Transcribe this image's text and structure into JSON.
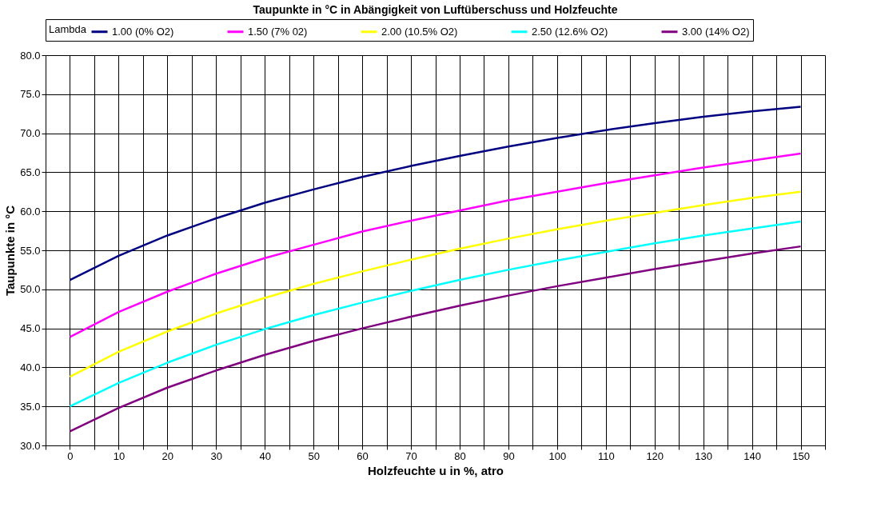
{
  "chart_data": {
    "type": "line",
    "title": "Taupunkte in °C in Abängigkeit von Luftüberschuss und Holzfeuchte",
    "xlabel": "Holzfeuchte u in %, atro",
    "ylabel": "Taupunkte in °C",
    "legend_title": "Lambda",
    "legend": "top",
    "grid": true,
    "marker": "none",
    "line_style": "solid",
    "x": [
      0,
      10,
      20,
      30,
      40,
      50,
      60,
      70,
      80,
      90,
      100,
      110,
      120,
      130,
      140,
      150
    ],
    "xlim": [
      -5,
      155
    ],
    "xticks": [
      {
        "value": -5,
        "label": null
      },
      0,
      {
        "value": 5,
        "label": null
      },
      10,
      {
        "value": 15,
        "label": null
      },
      20,
      {
        "value": 25,
        "label": null
      },
      30,
      {
        "value": 35,
        "label": null
      },
      40,
      {
        "value": 45,
        "label": null
      },
      50,
      {
        "value": 55,
        "label": null
      },
      60,
      {
        "value": 65,
        "label": null
      },
      70,
      {
        "value": 75,
        "label": null
      },
      80,
      {
        "value": 85,
        "label": null
      },
      90,
      {
        "value": 95,
        "label": null
      },
      100,
      {
        "value": 105,
        "label": null
      },
      110,
      {
        "value": 115,
        "label": null
      },
      120,
      {
        "value": 125,
        "label": null
      },
      130,
      {
        "value": 135,
        "label": null
      },
      140,
      {
        "value": 145,
        "label": null
      },
      150,
      {
        "value": 155,
        "label": null
      }
    ],
    "ylim": [
      30,
      80
    ],
    "yticks": [
      {
        "value": 30,
        "label": "30.0"
      },
      {
        "value": 35,
        "label": "35.0"
      },
      {
        "value": 40,
        "label": "40.0"
      },
      {
        "value": 45,
        "label": "45.0"
      },
      {
        "value": 50,
        "label": "50.0"
      },
      {
        "value": 55,
        "label": "55.0"
      },
      {
        "value": 60,
        "label": "60.0"
      },
      {
        "value": 65,
        "label": "65.0"
      },
      {
        "value": 70,
        "label": "70.0"
      },
      {
        "value": 75,
        "label": "75.0"
      },
      {
        "value": 80,
        "label": "80.0"
      }
    ],
    "series": [
      {
        "name": "1.00 (0% O2)",
        "color": "#000080",
        "values": [
          51.2,
          54.3,
          56.9,
          59.1,
          61.1,
          62.8,
          64.4,
          65.8,
          67.1,
          68.3,
          69.4,
          70.4,
          71.3,
          72.1,
          72.8,
          73.4
        ]
      },
      {
        "name": "1.50 (7% 02)",
        "color": "#ff00ff",
        "values": [
          43.9,
          47.1,
          49.7,
          52.0,
          54.0,
          55.7,
          57.4,
          58.8,
          60.1,
          61.4,
          62.5,
          63.6,
          64.6,
          65.6,
          66.5,
          67.4
        ]
      },
      {
        "name": "2.00 (10.5% O2)",
        "color": "#ffff00",
        "values": [
          38.8,
          42.0,
          44.6,
          46.9,
          48.9,
          50.7,
          52.3,
          53.8,
          55.2,
          56.5,
          57.7,
          58.8,
          59.8,
          60.8,
          61.7,
          62.5
        ]
      },
      {
        "name": "2.50 (12.6% O2)",
        "color": "#00ffff",
        "values": [
          35.0,
          38.0,
          40.6,
          42.9,
          44.9,
          46.7,
          48.3,
          49.8,
          51.2,
          52.5,
          53.7,
          54.8,
          55.9,
          56.9,
          57.8,
          58.7
        ]
      },
      {
        "name": "3.00 (14% O2)",
        "color": "#800080",
        "values": [
          31.8,
          34.8,
          37.4,
          39.6,
          41.6,
          43.4,
          45.0,
          46.5,
          47.9,
          49.2,
          50.4,
          51.5,
          52.6,
          53.6,
          54.6,
          55.5
        ]
      }
    ]
  }
}
